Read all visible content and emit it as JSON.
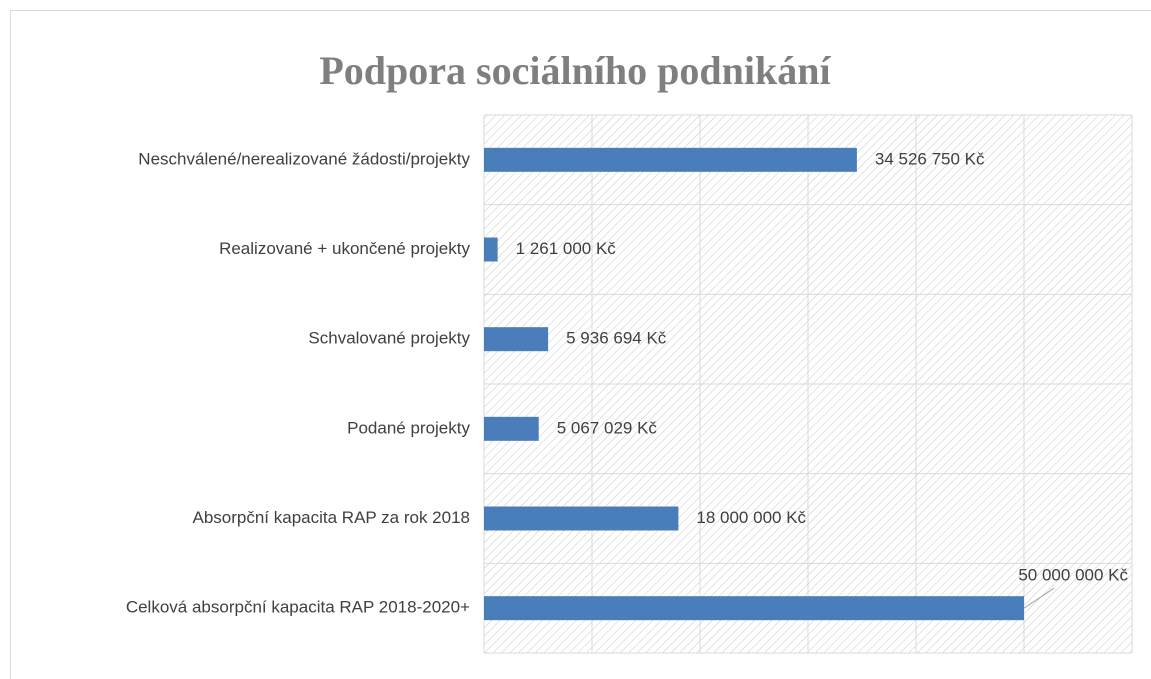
{
  "chart_data": {
    "type": "bar",
    "orientation": "horizontal",
    "title": "Podpora sociálního podnikání",
    "categories": [
      "Neschválené/nerealizované žádosti/projekty",
      "Realizované + ukončené projekty",
      "Schvalované projekty",
      "Podané projekty",
      "Absorpční kapacita RAP za rok 2018",
      "Celková absorpční kapacita RAP 2018-2020+"
    ],
    "values": [
      34526750,
      1261000,
      5936694,
      5067029,
      18000000,
      50000000
    ],
    "value_labels": [
      "34 526 750 Kč",
      "1 261 000 Kč",
      "5 936 694 Kč",
      "5 067 029 Kč",
      "18 000 000 Kč",
      "50 000 000 Kč"
    ],
    "color": "#4a7ebb",
    "xlim": [
      0,
      60000000
    ],
    "xticks": [
      0,
      10000000,
      20000000,
      30000000,
      40000000,
      50000000,
      60000000
    ],
    "grid": true
  }
}
